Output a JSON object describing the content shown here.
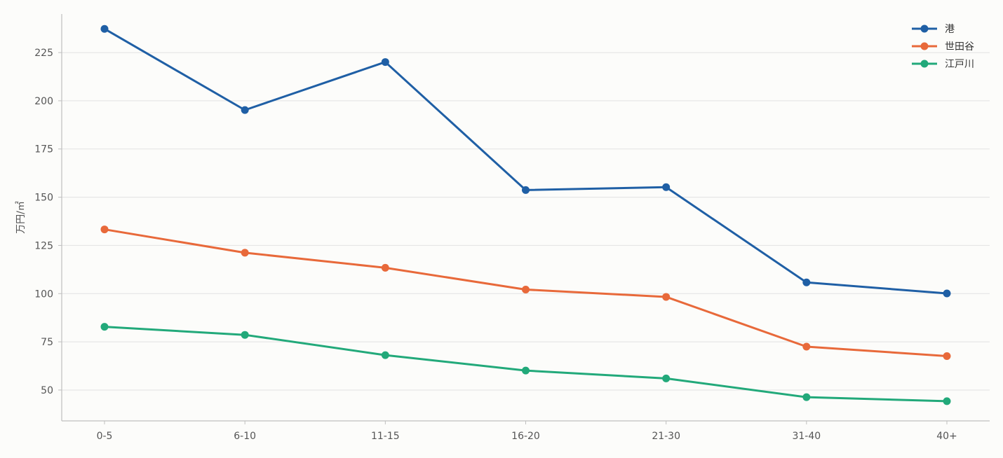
{
  "chart_data": {
    "type": "line",
    "title": "",
    "xlabel": "",
    "ylabel": "万円/㎡",
    "categories": [
      "0-5",
      "6-10",
      "11-15",
      "16-20",
      "21-30",
      "31-40",
      "40+"
    ],
    "yticks": [
      50,
      75,
      100,
      125,
      150,
      175,
      200,
      225
    ],
    "ylim": [
      34,
      245
    ],
    "grid": "horizontal",
    "legend": "top-right",
    "series": [
      {
        "name": "港",
        "color": "#1f5fa5",
        "values": [
          237.3,
          195.2,
          220.1,
          153.7,
          155.2,
          105.8,
          100.1
        ]
      },
      {
        "name": "世田谷",
        "color": "#e8693a",
        "values": [
          133.3,
          121.2,
          113.4,
          102.1,
          98.3,
          72.5,
          67.6
        ]
      },
      {
        "name": "江戸川",
        "color": "#22a97a",
        "values": [
          82.8,
          78.6,
          68.1,
          60.1,
          56.0,
          46.3,
          44.2
        ]
      }
    ]
  }
}
